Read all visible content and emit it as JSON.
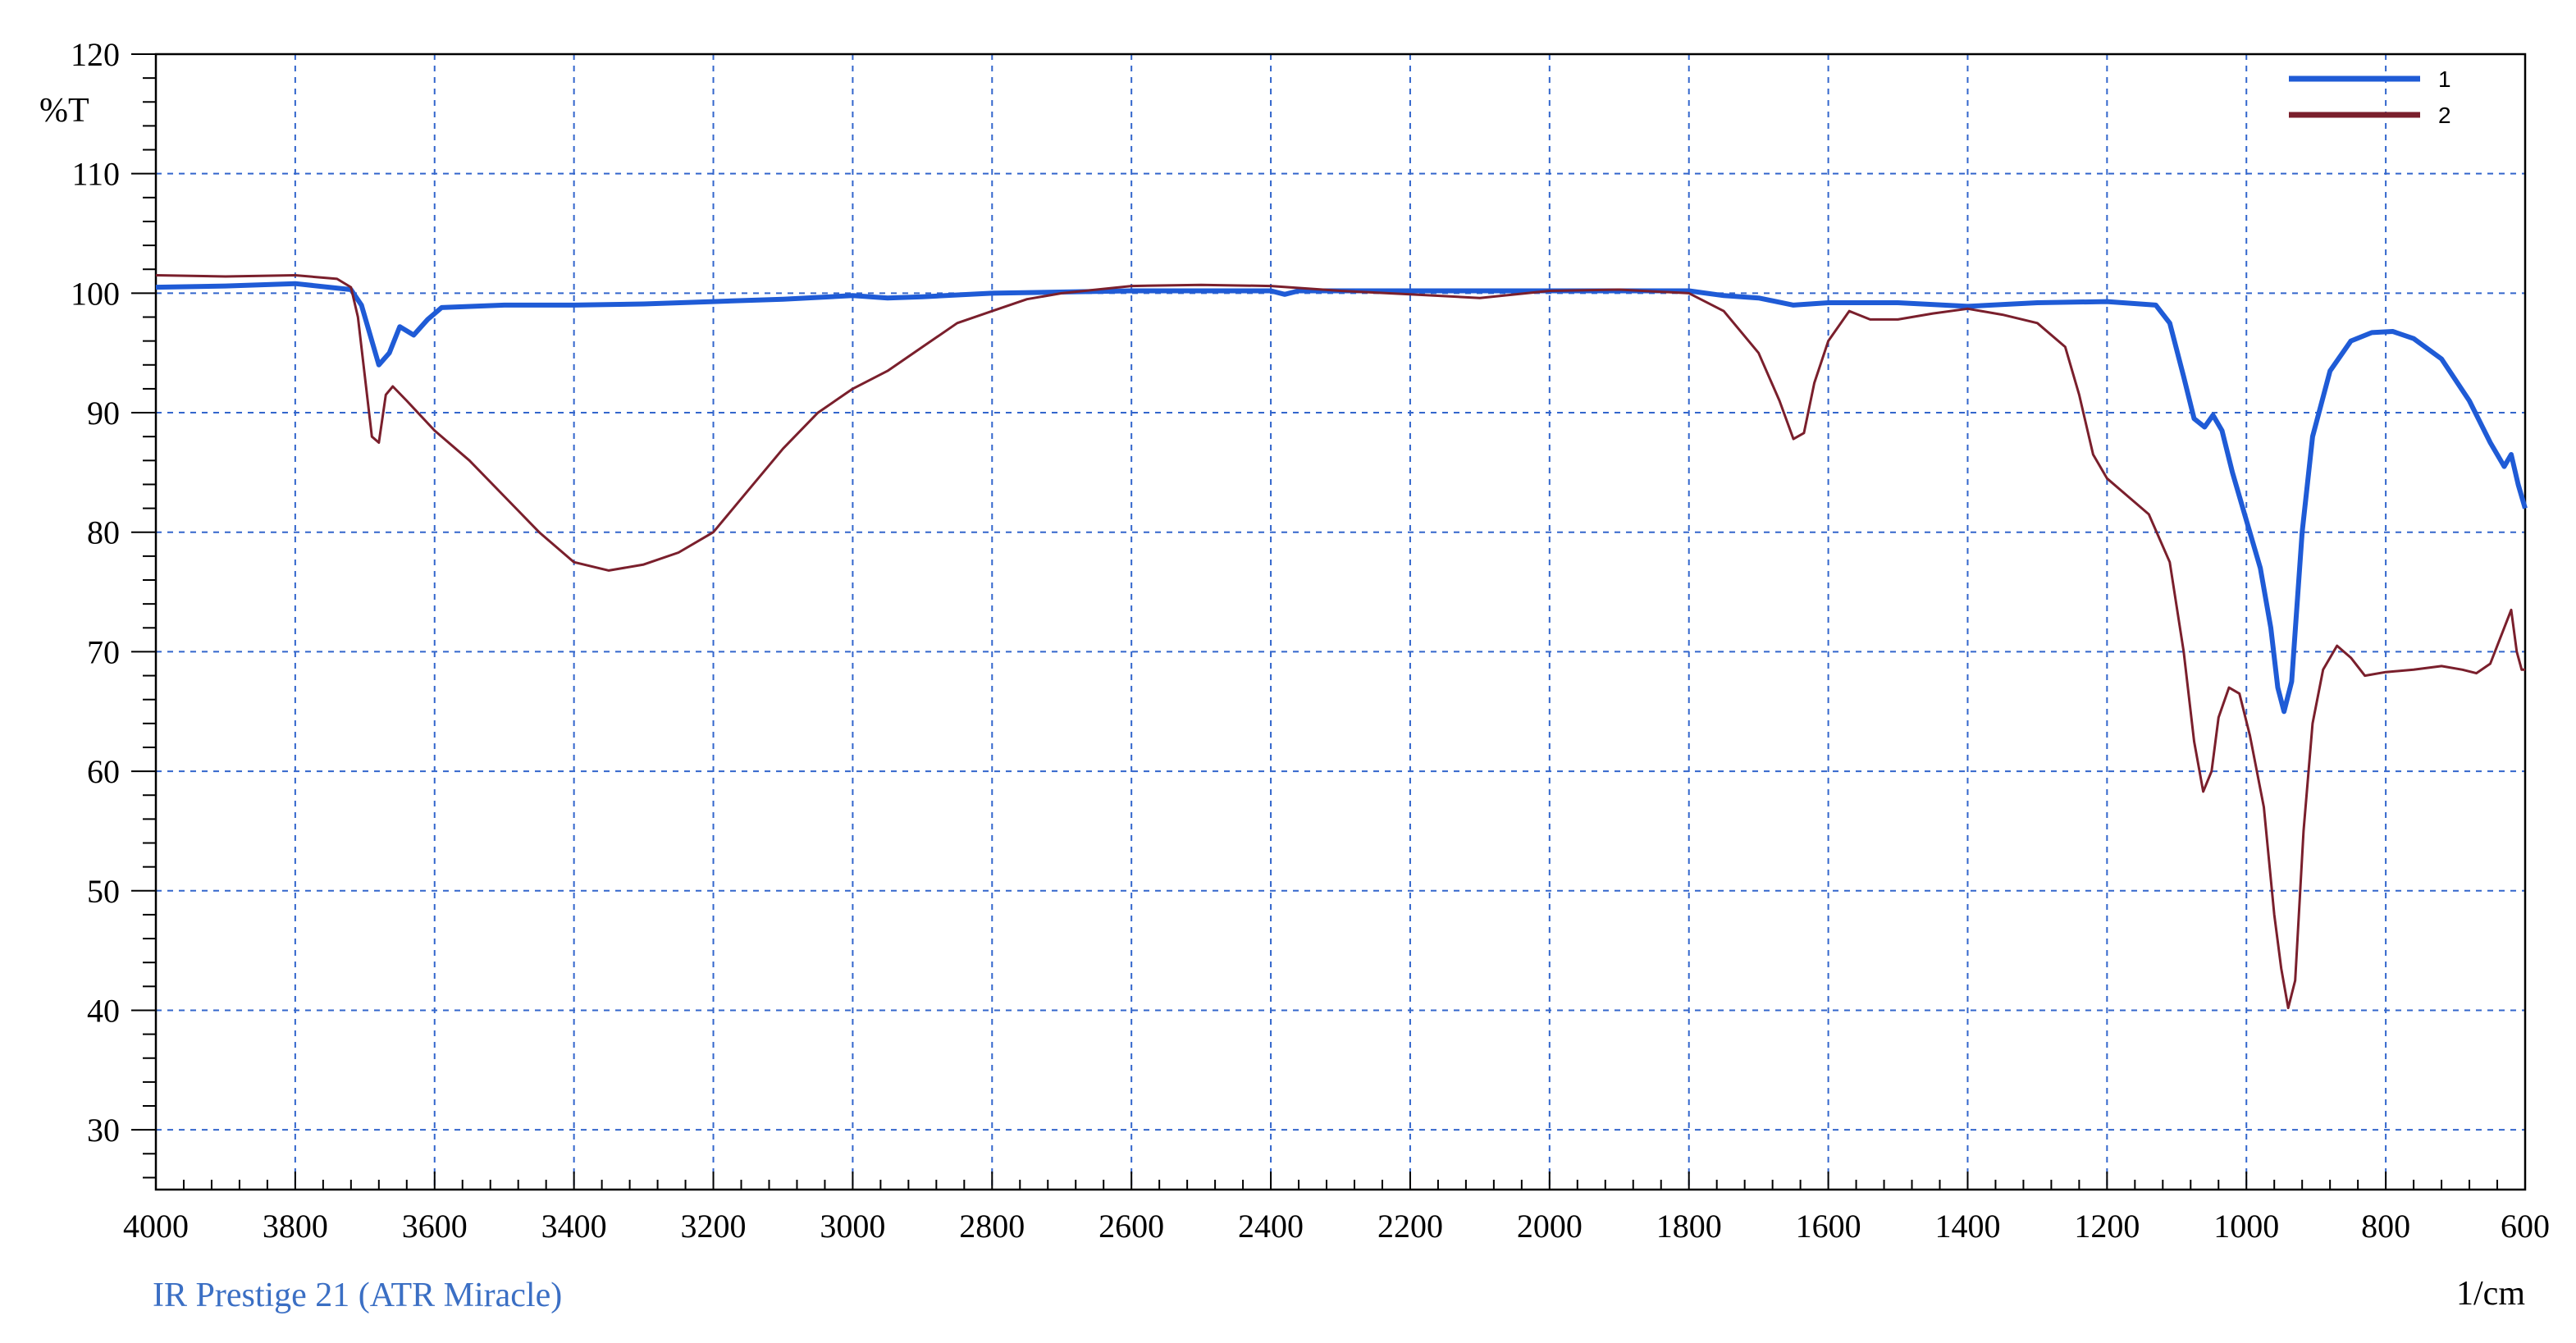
{
  "chart_data": {
    "type": "line",
    "ylabel": "%T",
    "xlabel": "1/cm",
    "footer": "IR Prestige 21 (ATR Miracle)",
    "xlim": [
      4000,
      600
    ],
    "ylim": [
      25,
      120
    ],
    "x_reversed": true,
    "grid": true,
    "legend_position": "top-right",
    "xticks": [
      4000,
      3800,
      3600,
      3400,
      3200,
      3000,
      2800,
      2600,
      2400,
      2200,
      2000,
      1800,
      1600,
      1400,
      1200,
      1000,
      800,
      600
    ],
    "yticks": [
      30,
      40,
      50,
      60,
      70,
      80,
      90,
      100,
      110,
      120
    ],
    "series": [
      {
        "name": "1",
        "color": "#1f5bd6",
        "points": [
          [
            4000,
            100.5
          ],
          [
            3900,
            100.6
          ],
          [
            3800,
            100.8
          ],
          [
            3720,
            100.3
          ],
          [
            3705,
            99.0
          ],
          [
            3690,
            96.0
          ],
          [
            3680,
            94.0
          ],
          [
            3665,
            95.0
          ],
          [
            3650,
            97.2
          ],
          [
            3630,
            96.5
          ],
          [
            3610,
            97.8
          ],
          [
            3590,
            98.8
          ],
          [
            3500,
            99.0
          ],
          [
            3400,
            99.0
          ],
          [
            3300,
            99.1
          ],
          [
            3200,
            99.3
          ],
          [
            3100,
            99.5
          ],
          [
            3000,
            99.8
          ],
          [
            2950,
            99.6
          ],
          [
            2900,
            99.7
          ],
          [
            2800,
            100.0
          ],
          [
            2600,
            100.2
          ],
          [
            2400,
            100.2
          ],
          [
            2380,
            99.9
          ],
          [
            2360,
            100.2
          ],
          [
            2200,
            100.2
          ],
          [
            2000,
            100.2
          ],
          [
            1800,
            100.2
          ],
          [
            1750,
            99.8
          ],
          [
            1700,
            99.6
          ],
          [
            1650,
            99.0
          ],
          [
            1600,
            99.2
          ],
          [
            1500,
            99.2
          ],
          [
            1400,
            98.9
          ],
          [
            1300,
            99.2
          ],
          [
            1200,
            99.3
          ],
          [
            1130,
            99.0
          ],
          [
            1110,
            97.5
          ],
          [
            1090,
            93.0
          ],
          [
            1075,
            89.5
          ],
          [
            1060,
            88.8
          ],
          [
            1048,
            89.8
          ],
          [
            1035,
            88.5
          ],
          [
            1020,
            85.0
          ],
          [
            1000,
            81.0
          ],
          [
            980,
            77.0
          ],
          [
            965,
            72.0
          ],
          [
            955,
            67.0
          ],
          [
            946,
            65.0
          ],
          [
            935,
            67.5
          ],
          [
            920,
            80.0
          ],
          [
            905,
            88.0
          ],
          [
            880,
            93.5
          ],
          [
            850,
            96.0
          ],
          [
            820,
            96.7
          ],
          [
            790,
            96.8
          ],
          [
            760,
            96.2
          ],
          [
            720,
            94.5
          ],
          [
            680,
            91.0
          ],
          [
            650,
            87.5
          ],
          [
            630,
            85.5
          ],
          [
            620,
            86.5
          ],
          [
            610,
            84.0
          ],
          [
            600,
            82.0
          ]
        ]
      },
      {
        "name": "2",
        "color": "#7a1f2c",
        "points": [
          [
            4000,
            101.5
          ],
          [
            3900,
            101.4
          ],
          [
            3800,
            101.5
          ],
          [
            3740,
            101.2
          ],
          [
            3720,
            100.5
          ],
          [
            3710,
            98.0
          ],
          [
            3700,
            93.0
          ],
          [
            3690,
            88.0
          ],
          [
            3680,
            87.5
          ],
          [
            3670,
            91.5
          ],
          [
            3660,
            92.2
          ],
          [
            3640,
            91.0
          ],
          [
            3600,
            88.5
          ],
          [
            3550,
            86.0
          ],
          [
            3500,
            83.0
          ],
          [
            3450,
            80.0
          ],
          [
            3400,
            77.5
          ],
          [
            3350,
            76.8
          ],
          [
            3300,
            77.3
          ],
          [
            3250,
            78.3
          ],
          [
            3200,
            80.0
          ],
          [
            3150,
            83.5
          ],
          [
            3100,
            87.0
          ],
          [
            3050,
            90.0
          ],
          [
            3000,
            92.0
          ],
          [
            2950,
            93.5
          ],
          [
            2900,
            95.5
          ],
          [
            2850,
            97.5
          ],
          [
            2800,
            98.5
          ],
          [
            2750,
            99.5
          ],
          [
            2700,
            100.0
          ],
          [
            2600,
            100.6
          ],
          [
            2500,
            100.7
          ],
          [
            2400,
            100.6
          ],
          [
            2300,
            100.2
          ],
          [
            2200,
            99.9
          ],
          [
            2100,
            99.6
          ],
          [
            2000,
            100.2
          ],
          [
            1900,
            100.3
          ],
          [
            1800,
            100.0
          ],
          [
            1750,
            98.5
          ],
          [
            1700,
            95.0
          ],
          [
            1670,
            91.0
          ],
          [
            1650,
            87.8
          ],
          [
            1635,
            88.3
          ],
          [
            1620,
            92.5
          ],
          [
            1600,
            96.0
          ],
          [
            1570,
            98.5
          ],
          [
            1540,
            97.8
          ],
          [
            1500,
            97.8
          ],
          [
            1450,
            98.3
          ],
          [
            1400,
            98.7
          ],
          [
            1350,
            98.2
          ],
          [
            1300,
            97.5
          ],
          [
            1260,
            95.5
          ],
          [
            1240,
            91.5
          ],
          [
            1220,
            86.5
          ],
          [
            1200,
            84.5
          ],
          [
            1170,
            83.0
          ],
          [
            1140,
            81.5
          ],
          [
            1110,
            77.5
          ],
          [
            1090,
            70.0
          ],
          [
            1075,
            62.5
          ],
          [
            1062,
            58.3
          ],
          [
            1050,
            60.0
          ],
          [
            1040,
            64.5
          ],
          [
            1025,
            67.0
          ],
          [
            1010,
            66.5
          ],
          [
            995,
            63.0
          ],
          [
            975,
            57.0
          ],
          [
            960,
            48.0
          ],
          [
            950,
            43.5
          ],
          [
            940,
            40.2
          ],
          [
            930,
            42.5
          ],
          [
            918,
            55.0
          ],
          [
            905,
            64.0
          ],
          [
            890,
            68.5
          ],
          [
            870,
            70.5
          ],
          [
            850,
            69.5
          ],
          [
            830,
            68.0
          ],
          [
            800,
            68.3
          ],
          [
            760,
            68.5
          ],
          [
            720,
            68.8
          ],
          [
            690,
            68.5
          ],
          [
            670,
            68.2
          ],
          [
            650,
            69.0
          ],
          [
            630,
            72.0
          ],
          [
            620,
            73.5
          ],
          [
            612,
            70.0
          ],
          [
            605,
            68.5
          ],
          [
            600,
            68.5
          ]
        ]
      }
    ]
  }
}
